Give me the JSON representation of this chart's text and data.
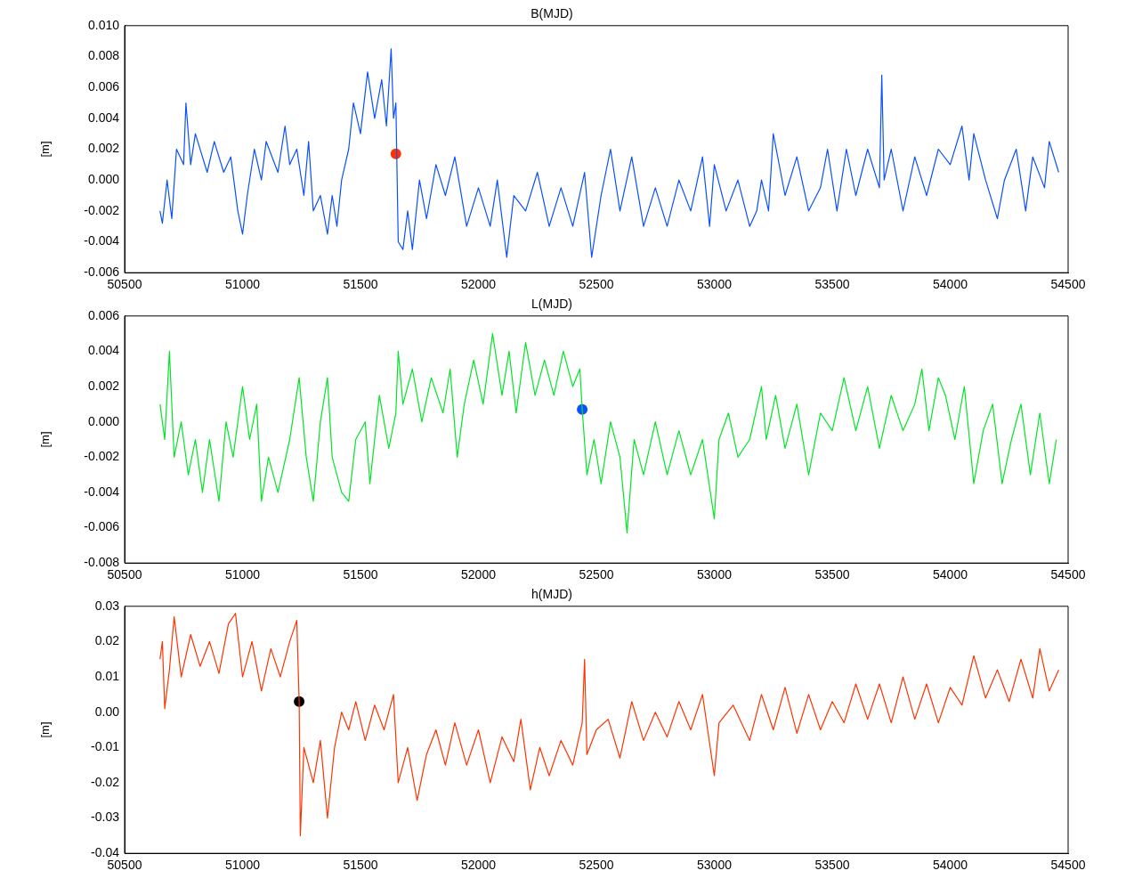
{
  "chart_data": [
    {
      "type": "line",
      "title": "B(MJD)",
      "ylabel": "[m]",
      "legend": false,
      "grid": false,
      "line_style": "solid",
      "xlim": [
        50500,
        54500
      ],
      "xticks": [
        50500,
        51000,
        51500,
        52000,
        52500,
        53000,
        53500,
        54000,
        54500
      ],
      "ylim": [
        -0.006,
        0.01
      ],
      "yticks": [
        {
          "value": -0.006,
          "label": "-0.006"
        },
        {
          "value": -0.004,
          "label": "-0.004"
        },
        {
          "value": -0.002,
          "label": "-0.002"
        },
        {
          "value": 0,
          "label": "0.000"
        },
        {
          "value": 0.002,
          "label": "0.002"
        },
        {
          "value": 0.004,
          "label": "0.004"
        },
        {
          "value": 0.006,
          "label": "0.006"
        },
        {
          "value": 0.008,
          "label": "0.008"
        },
        {
          "value": 0.01,
          "label": "0.010"
        }
      ],
      "series": [
        {
          "marker": "none",
          "color": "#0a50ff",
          "x": [
            50650,
            50660,
            50680,
            50700,
            50720,
            50750,
            50760,
            50780,
            50800,
            50850,
            50880,
            50920,
            50950,
            50980,
            51000,
            51020,
            51050,
            51080,
            51100,
            51150,
            51180,
            51200,
            51230,
            51260,
            51280,
            51300,
            51330,
            51360,
            51380,
            51400,
            51420,
            51450,
            51470,
            51500,
            51530,
            51560,
            51590,
            51610,
            51630,
            51640,
            51650,
            51660,
            51680,
            51700,
            51720,
            51750,
            51780,
            51820,
            51860,
            51900,
            51950,
            52000,
            52050,
            52080,
            52120,
            52150,
            52200,
            52250,
            52300,
            52350,
            52400,
            52450,
            52480,
            52520,
            52560,
            52600,
            52650,
            52700,
            52750,
            52800,
            52850,
            52900,
            52950,
            52980,
            53000,
            53050,
            53100,
            53150,
            53180,
            53200,
            53230,
            53250,
            53300,
            53350,
            53400,
            53450,
            53480,
            53520,
            53560,
            53600,
            53650,
            53700,
            53710,
            53720,
            53750,
            53800,
            53850,
            53900,
            53950,
            54000,
            54050,
            54080,
            54100,
            54150,
            54200,
            54230,
            54280,
            54320,
            54350,
            54400,
            54420,
            54460
          ],
          "values": [
            -0.002,
            -0.0028,
            0.0,
            -0.0025,
            0.002,
            0.001,
            0.005,
            0.001,
            0.003,
            0.0005,
            0.0025,
            0.0005,
            0.0015,
            -0.002,
            -0.0035,
            -0.001,
            0.002,
            0.0,
            0.0025,
            0.0005,
            0.0035,
            0.001,
            0.002,
            -0.001,
            0.0025,
            -0.002,
            -0.001,
            -0.0035,
            -0.001,
            -0.003,
            0.0,
            0.002,
            0.005,
            0.003,
            0.007,
            0.004,
            0.0065,
            0.0035,
            0.0085,
            0.004,
            0.005,
            -0.004,
            -0.0045,
            -0.002,
            -0.0045,
            0.0,
            -0.0025,
            0.001,
            -0.001,
            0.0015,
            -0.003,
            -0.0005,
            -0.003,
            0.0,
            -0.005,
            -0.001,
            -0.002,
            0.0005,
            -0.003,
            -0.0005,
            -0.003,
            0.0005,
            -0.005,
            -0.001,
            0.002,
            -0.002,
            0.0015,
            -0.003,
            -0.0005,
            -0.003,
            0.0,
            -0.002,
            0.0015,
            -0.003,
            0.001,
            -0.002,
            0.0,
            -0.003,
            -0.002,
            0.0,
            -0.002,
            0.003,
            -0.001,
            0.0015,
            -0.002,
            -0.0005,
            0.002,
            -0.002,
            0.002,
            -0.001,
            0.002,
            -0.0005,
            0.0068,
            0.0,
            0.002,
            -0.002,
            0.0015,
            -0.001,
            0.002,
            0.001,
            0.0035,
            0.0,
            0.003,
            0.0,
            -0.0025,
            0.0,
            0.002,
            -0.002,
            0.0015,
            -0.0005,
            0.0025,
            0.0005
          ]
        },
        {
          "type": "scatter",
          "marker": "circle",
          "color": "#ff3300",
          "x": [
            51650
          ],
          "values": [
            0.0017
          ]
        }
      ]
    },
    {
      "type": "line",
      "title": "L(MJD)",
      "ylabel": "[m]",
      "legend": false,
      "grid": false,
      "line_style": "solid",
      "xlim": [
        50500,
        54500
      ],
      "xticks": [
        50500,
        51000,
        51500,
        52000,
        52500,
        53000,
        53500,
        54000,
        54500
      ],
      "ylim": [
        -0.008,
        0.006
      ],
      "yticks": [
        {
          "value": -0.008,
          "label": "-0.008"
        },
        {
          "value": -0.006,
          "label": "-0.006"
        },
        {
          "value": -0.004,
          "label": "-0.004"
        },
        {
          "value": -0.002,
          "label": "-0.002"
        },
        {
          "value": 0,
          "label": "0.000"
        },
        {
          "value": 0.002,
          "label": "0.002"
        },
        {
          "value": 0.004,
          "label": "0.004"
        },
        {
          "value": 0.006,
          "label": "0.006"
        }
      ],
      "series": [
        {
          "marker": "none",
          "color": "#00e626",
          "x": [
            50650,
            50670,
            50690,
            50710,
            50740,
            50770,
            50800,
            50830,
            50860,
            50900,
            50930,
            50960,
            51000,
            51030,
            51060,
            51080,
            51110,
            51150,
            51200,
            51240,
            51270,
            51300,
            51330,
            51360,
            51380,
            51420,
            51450,
            51480,
            51520,
            51540,
            51580,
            51620,
            51650,
            51660,
            51680,
            51720,
            51760,
            51800,
            51850,
            51880,
            51910,
            51940,
            51980,
            52020,
            52060,
            52100,
            52130,
            52160,
            52200,
            52240,
            52280,
            52320,
            52360,
            52400,
            52430,
            52440,
            52460,
            52490,
            52520,
            52560,
            52600,
            52630,
            52660,
            52700,
            52750,
            52800,
            52850,
            52900,
            52950,
            53000,
            53020,
            53060,
            53100,
            53150,
            53200,
            53220,
            53260,
            53300,
            53350,
            53400,
            53450,
            53500,
            53550,
            53600,
            53650,
            53700,
            53750,
            53800,
            53850,
            53880,
            53910,
            53950,
            53980,
            54020,
            54060,
            54100,
            54140,
            54180,
            54220,
            54260,
            54300,
            54340,
            54380,
            54420,
            54450
          ],
          "values": [
            0.001,
            -0.001,
            0.004,
            -0.002,
            0.0,
            -0.003,
            -0.001,
            -0.004,
            -0.001,
            -0.0045,
            0.0,
            -0.002,
            0.002,
            -0.001,
            0.001,
            -0.0045,
            -0.002,
            -0.004,
            -0.001,
            0.0025,
            -0.002,
            -0.0045,
            0.0,
            0.0025,
            -0.002,
            -0.004,
            -0.0045,
            -0.001,
            0.0,
            -0.0035,
            0.0015,
            -0.0015,
            0.0005,
            0.004,
            0.001,
            0.003,
            0.0,
            0.0025,
            0.0005,
            0.003,
            -0.002,
            0.001,
            0.0035,
            0.001,
            0.005,
            0.0015,
            0.004,
            0.0005,
            0.0045,
            0.0015,
            0.0035,
            0.0015,
            0.004,
            0.002,
            0.003,
            0.0007,
            -0.003,
            -0.001,
            -0.0035,
            0.0,
            -0.002,
            -0.0063,
            -0.001,
            -0.003,
            0.0,
            -0.003,
            -0.0005,
            -0.003,
            -0.001,
            -0.0055,
            -0.001,
            0.0005,
            -0.002,
            -0.001,
            0.002,
            -0.001,
            0.0015,
            -0.0015,
            0.001,
            -0.003,
            0.0005,
            -0.0005,
            0.0025,
            -0.0005,
            0.002,
            -0.0015,
            0.0015,
            -0.0005,
            0.001,
            0.003,
            -0.0005,
            0.0025,
            0.0015,
            -0.001,
            0.002,
            -0.0035,
            -0.0005,
            0.001,
            -0.0035,
            -0.001,
            0.001,
            -0.003,
            0.0005,
            -0.0035,
            -0.001
          ]
        },
        {
          "type": "scatter",
          "marker": "circle",
          "color": "#0a50ff",
          "x": [
            52440
          ],
          "values": [
            0.0007
          ]
        }
      ]
    },
    {
      "type": "line",
      "title": "h(MJD)",
      "ylabel": "[m]",
      "legend": false,
      "grid": false,
      "line_style": "solid",
      "xlim": [
        50500,
        54500
      ],
      "xticks": [
        50500,
        51000,
        51500,
        52000,
        52500,
        53000,
        53500,
        54000,
        54500
      ],
      "ylim": [
        -0.04,
        0.03
      ],
      "yticks": [
        {
          "value": -0.04,
          "label": "-0.04"
        },
        {
          "value": -0.03,
          "label": "-0.03"
        },
        {
          "value": -0.02,
          "label": "-0.02"
        },
        {
          "value": -0.01,
          "label": "-0.01"
        },
        {
          "value": 0,
          "label": "0.00"
        },
        {
          "value": 0.01,
          "label": "0.01"
        },
        {
          "value": 0.02,
          "label": "0.02"
        },
        {
          "value": 0.03,
          "label": "0.03"
        }
      ],
      "series": [
        {
          "marker": "none",
          "color": "#ff3300",
          "x": [
            50650,
            50660,
            50670,
            50690,
            50710,
            50740,
            50780,
            50820,
            50860,
            50900,
            50940,
            50970,
            51000,
            51040,
            51080,
            51120,
            51160,
            51200,
            51230,
            51240,
            51245,
            51260,
            51300,
            51330,
            51360,
            51390,
            51420,
            51450,
            51480,
            51520,
            51560,
            51600,
            51640,
            51660,
            51700,
            51740,
            51780,
            51820,
            51860,
            51900,
            51950,
            52000,
            52050,
            52100,
            52150,
            52180,
            52220,
            52260,
            52300,
            52350,
            52400,
            52440,
            52450,
            52460,
            52500,
            52550,
            52600,
            52650,
            52700,
            52750,
            52800,
            52850,
            52900,
            52950,
            53000,
            53020,
            53080,
            53150,
            53200,
            53250,
            53300,
            53350,
            53400,
            53450,
            53500,
            53550,
            53600,
            53650,
            53700,
            53750,
            53800,
            53850,
            53900,
            53950,
            54000,
            54050,
            54100,
            54150,
            54200,
            54250,
            54300,
            54350,
            54380,
            54420,
            54460
          ],
          "values": [
            0.015,
            0.02,
            0.001,
            0.012,
            0.027,
            0.01,
            0.022,
            0.013,
            0.02,
            0.011,
            0.025,
            0.028,
            0.01,
            0.02,
            0.006,
            0.018,
            0.01,
            0.02,
            0.026,
            0.003,
            -0.035,
            -0.01,
            -0.02,
            -0.008,
            -0.03,
            -0.01,
            0.0,
            -0.005,
            0.003,
            -0.008,
            0.002,
            -0.005,
            0.005,
            -0.02,
            -0.01,
            -0.025,
            -0.012,
            -0.005,
            -0.015,
            -0.003,
            -0.015,
            -0.005,
            -0.02,
            -0.007,
            -0.014,
            -0.002,
            -0.022,
            -0.01,
            -0.018,
            -0.008,
            -0.015,
            -0.003,
            0.015,
            -0.012,
            -0.005,
            -0.002,
            -0.013,
            0.003,
            -0.008,
            0.0,
            -0.007,
            0.003,
            -0.005,
            0.005,
            -0.018,
            -0.003,
            0.002,
            -0.008,
            0.005,
            -0.005,
            0.007,
            -0.006,
            0.005,
            -0.005,
            0.003,
            -0.003,
            0.008,
            -0.002,
            0.008,
            -0.003,
            0.01,
            -0.002,
            0.008,
            -0.003,
            0.007,
            0.002,
            0.016,
            0.004,
            0.012,
            0.003,
            0.015,
            0.004,
            0.018,
            0.006,
            0.012
          ]
        },
        {
          "type": "scatter",
          "marker": "circle",
          "color": "#000000",
          "x": [
            51240
          ],
          "values": [
            0.003
          ]
        }
      ]
    }
  ]
}
